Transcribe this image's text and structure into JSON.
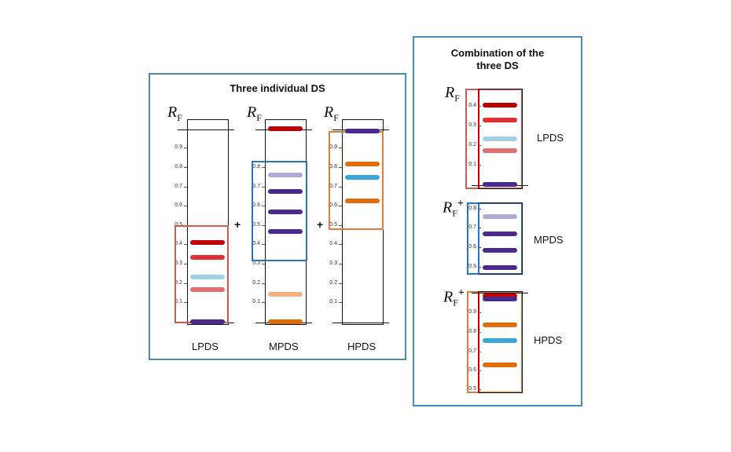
{
  "panel_left": {
    "title": "Three individual DS",
    "rf_labels": [
      "R",
      "R",
      "R"
    ],
    "rf_sub": "F",
    "plus": "+",
    "column_labels": [
      "LPDS",
      "MPDS",
      "HPDS"
    ],
    "ticks_lp": [
      "0.9",
      "0.8",
      "0.7",
      "0.6",
      "0.5",
      "0.4",
      "0.3",
      "0.2",
      "0.1"
    ],
    "ticks_mp": [
      "0.8",
      "0.7",
      "0.6",
      "0.5",
      "0.4",
      "0.3",
      "0.2",
      "0.1"
    ],
    "ticks_hp": [
      "0.9",
      "0.8",
      "0.7",
      "0.6",
      "0.5",
      "0.4",
      "0.3",
      "0.2",
      "0.1"
    ]
  },
  "panel_right": {
    "title_line1": "Combination of the",
    "title_line2": "three DS",
    "rf_label": "R",
    "rf_sub": "F",
    "rf_sup": "+",
    "group_labels": [
      "LPDS",
      "MPDS",
      "HPDS"
    ],
    "ticks_lp": [
      "0.4",
      "0.3",
      "0.2",
      "0.1"
    ],
    "ticks_mp": [
      "0.8",
      "0.7",
      "0.6",
      "0.5"
    ],
    "ticks_hp": [
      "0.9",
      "0.8",
      "0.7",
      "0.6",
      "0.5"
    ]
  },
  "colors": {
    "panel_border": "#4a8bbd",
    "lpds_box": "#d9534f",
    "mpds_box": "#2e75b6",
    "hpds_box": "#e07b39",
    "dark_red": "#c00000",
    "red": "#e03030",
    "pink": "#e07070",
    "light_blue": "#9fd0e8",
    "cyan": "#35a8d8",
    "purple": "#4b2a8e",
    "lavender": "#b3a9d9",
    "orange": "#e36c0a",
    "light_orange": "#f4b183"
  }
}
